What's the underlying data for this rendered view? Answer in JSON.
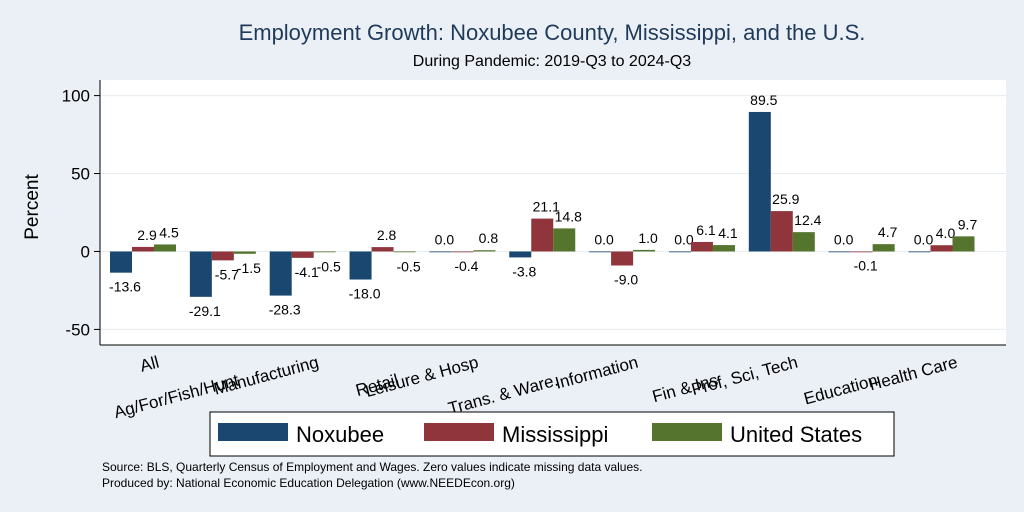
{
  "chart_data": {
    "type": "bar",
    "title": "Employment Growth: Noxubee County, Mississippi, and the U.S.",
    "subtitle": "During Pandemic: 2019-Q3 to 2024-Q3",
    "ylabel": "Percent",
    "xlabel": "",
    "ylim": [
      -60,
      110
    ],
    "yticks": [
      -50,
      0,
      50,
      100
    ],
    "grid": true,
    "legend_position": "bottom",
    "categories": [
      "All",
      "Ag/For/Fish/Hunt",
      "Manufacturing",
      "Retail",
      "Leisure & Hosp",
      "Trans. & Ware.",
      "Information",
      "Fin & Ins",
      "Prof, Sci, Tech",
      "Education",
      "Health Care"
    ],
    "series": [
      {
        "name": "Noxubee",
        "color": "#1a476f",
        "values": [
          -13.6,
          -29.1,
          -28.3,
          -18.0,
          0.0,
          -3.8,
          0.0,
          0.0,
          89.5,
          0.0,
          0.0
        ]
      },
      {
        "name": "Mississippi",
        "color": "#90353b",
        "values": [
          2.9,
          -5.7,
          -4.1,
          2.8,
          -0.4,
          21.1,
          -9.0,
          6.1,
          25.9,
          -0.1,
          4.0
        ]
      },
      {
        "name": "United States",
        "color": "#55752f",
        "values": [
          4.5,
          -1.5,
          -0.5,
          -0.5,
          0.8,
          14.8,
          1.0,
          4.1,
          12.4,
          4.7,
          9.7
        ]
      }
    ],
    "value_labels": [
      [
        "-13.6",
        "-29.1",
        "-28.3",
        "-18.0",
        "0.0",
        "-3.8",
        "0.0",
        "0.0",
        "89.5",
        "0.0",
        "0.0"
      ],
      [
        "2.9",
        "-5.7",
        "-4.1",
        "2.8",
        "-0.4",
        "21.1",
        "-9.0",
        "6.1",
        "25.9",
        "-0.1",
        "4.0"
      ],
      [
        "4.5",
        "-1.5",
        "-0.5",
        "-0.5",
        "0.8",
        "14.8",
        "1.0",
        "4.1",
        "12.4",
        "4.7",
        "9.7"
      ]
    ],
    "notes": [
      "Source: BLS, Quarterly Census of Employment and Wages. Zero values indicate missing data values.",
      "Produced by: National Economic Education Delegation (www.NEEDEcon.org)"
    ]
  }
}
